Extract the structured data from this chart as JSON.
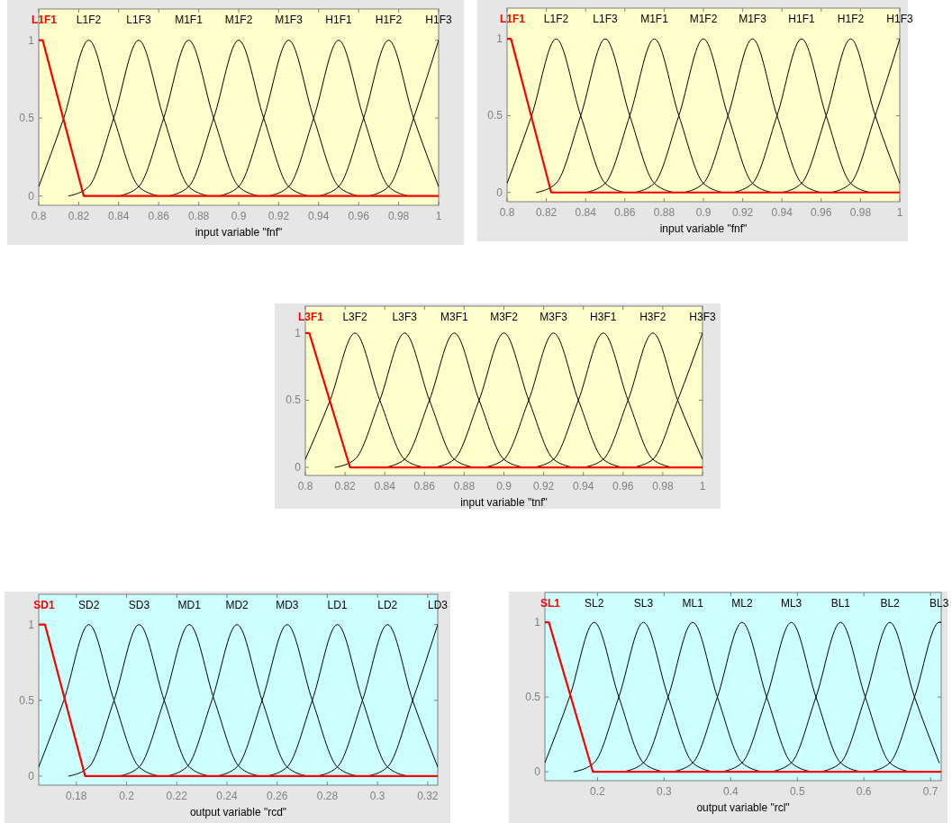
{
  "chart_data": [
    {
      "type": "line",
      "xlabel": "input variable \"fnf\"",
      "xlim": [
        0.8,
        1
      ],
      "xticks": [
        0.8,
        0.82,
        0.84,
        0.86,
        0.88,
        0.9,
        0.92,
        0.94,
        0.96,
        0.98,
        1
      ],
      "ylim": [
        -0.06,
        1.2
      ],
      "yticks": [
        0,
        0.5,
        1
      ],
      "series": [
        {
          "name": "L1F1",
          "color": "#ff0000",
          "x": [
            0.8,
            0.802,
            0.8225,
            1
          ],
          "values": [
            1,
            1,
            0,
            0
          ]
        },
        {
          "name": "L1F2",
          "color": "#000000",
          "x": [
            0.8,
            0.8125,
            0.825,
            0.8375,
            0.85,
            0.86
          ],
          "values": [
            0.06,
            0.5,
            1,
            0.5,
            0.06,
            0
          ]
        },
        {
          "name": "L1F3",
          "color": "#000000",
          "x": [
            0.815,
            0.825,
            0.8375,
            0.85,
            0.8625,
            0.875,
            0.885
          ],
          "values": [
            0,
            0.06,
            0.5,
            1,
            0.5,
            0.06,
            0
          ]
        },
        {
          "name": "M1F1",
          "color": "#000000",
          "x": [
            0.84,
            0.85,
            0.8625,
            0.875,
            0.8875,
            0.9,
            0.91
          ],
          "values": [
            0,
            0.06,
            0.5,
            1,
            0.5,
            0.06,
            0
          ]
        },
        {
          "name": "M1F2",
          "color": "#000000",
          "x": [
            0.865,
            0.875,
            0.8875,
            0.9,
            0.9125,
            0.925,
            0.935
          ],
          "values": [
            0,
            0.06,
            0.5,
            1,
            0.5,
            0.06,
            0
          ]
        },
        {
          "name": "M1F3",
          "color": "#000000",
          "x": [
            0.89,
            0.9,
            0.9125,
            0.925,
            0.9375,
            0.95,
            0.96
          ],
          "values": [
            0,
            0.06,
            0.5,
            1,
            0.5,
            0.06,
            0
          ]
        },
        {
          "name": "H1F1",
          "color": "#000000",
          "x": [
            0.915,
            0.925,
            0.9375,
            0.95,
            0.9625,
            0.975,
            0.985
          ],
          "values": [
            0,
            0.06,
            0.5,
            1,
            0.5,
            0.06,
            0
          ]
        },
        {
          "name": "H1F2",
          "color": "#000000",
          "x": [
            0.94,
            0.95,
            0.9625,
            0.975,
            0.9875,
            1
          ],
          "values": [
            0,
            0.06,
            0.5,
            1,
            0.5,
            0.06
          ]
        },
        {
          "name": "H1F3",
          "color": "#000000",
          "x": [
            0.965,
            0.975,
            0.9875,
            1
          ],
          "values": [
            0,
            0.06,
            0.5,
            1
          ]
        }
      ]
    },
    {
      "type": "line",
      "xlabel": "input variable \"fnf\"",
      "xlim": [
        0.8,
        1
      ],
      "xticks": [
        0.8,
        0.82,
        0.84,
        0.86,
        0.88,
        0.9,
        0.92,
        0.94,
        0.96,
        0.98,
        1
      ],
      "ylim": [
        -0.06,
        1.2
      ],
      "yticks": [
        0,
        0.5,
        1
      ],
      "series": [
        {
          "name": "L1F1",
          "color": "#ff0000",
          "x": [
            0.8,
            0.802,
            0.8225,
            1
          ],
          "values": [
            1,
            1,
            0,
            0
          ]
        },
        {
          "name": "L1F2",
          "color": "#000000",
          "x": [
            0.8,
            0.8125,
            0.825,
            0.8375,
            0.85,
            0.86
          ],
          "values": [
            0.06,
            0.5,
            1,
            0.5,
            0.06,
            0
          ]
        },
        {
          "name": "L1F3",
          "color": "#000000",
          "x": [
            0.815,
            0.825,
            0.8375,
            0.85,
            0.8625,
            0.875,
            0.885
          ],
          "values": [
            0,
            0.06,
            0.5,
            1,
            0.5,
            0.06,
            0
          ]
        },
        {
          "name": "M1F1",
          "color": "#000000",
          "x": [
            0.84,
            0.85,
            0.8625,
            0.875,
            0.8875,
            0.9,
            0.91
          ],
          "values": [
            0,
            0.06,
            0.5,
            1,
            0.5,
            0.06,
            0
          ]
        },
        {
          "name": "M1F2",
          "color": "#000000",
          "x": [
            0.865,
            0.875,
            0.8875,
            0.9,
            0.9125,
            0.925,
            0.935
          ],
          "values": [
            0,
            0.06,
            0.5,
            1,
            0.5,
            0.06,
            0
          ]
        },
        {
          "name": "M1F3",
          "color": "#000000",
          "x": [
            0.89,
            0.9,
            0.9125,
            0.925,
            0.9375,
            0.95,
            0.96
          ],
          "values": [
            0,
            0.06,
            0.5,
            1,
            0.5,
            0.06,
            0
          ]
        },
        {
          "name": "H1F1",
          "color": "#000000",
          "x": [
            0.915,
            0.925,
            0.9375,
            0.95,
            0.9625,
            0.975,
            0.985
          ],
          "values": [
            0,
            0.06,
            0.5,
            1,
            0.5,
            0.06,
            0
          ]
        },
        {
          "name": "H1F2",
          "color": "#000000",
          "x": [
            0.94,
            0.95,
            0.9625,
            0.975,
            0.9875,
            1
          ],
          "values": [
            0,
            0.06,
            0.5,
            1,
            0.5,
            0.06
          ]
        },
        {
          "name": "H1F3",
          "color": "#000000",
          "x": [
            0.965,
            0.975,
            0.9875,
            1
          ],
          "values": [
            0,
            0.06,
            0.5,
            1
          ]
        }
      ]
    },
    {
      "type": "line",
      "xlabel": "input variable \"tnf\"",
      "xlim": [
        0.8,
        1
      ],
      "xticks": [
        0.8,
        0.82,
        0.84,
        0.86,
        0.88,
        0.9,
        0.92,
        0.94,
        0.96,
        0.98,
        1
      ],
      "ylim": [
        -0.06,
        1.2
      ],
      "yticks": [
        0,
        0.5,
        1
      ],
      "series": [
        {
          "name": "L3F1",
          "color": "#ff0000",
          "x": [
            0.8,
            0.802,
            0.8225,
            1
          ],
          "values": [
            1,
            1,
            0,
            0
          ]
        },
        {
          "name": "L3F2",
          "color": "#000000",
          "x": [
            0.8,
            0.8125,
            0.825,
            0.8375,
            0.85,
            0.86
          ],
          "values": [
            0.06,
            0.5,
            1,
            0.5,
            0.06,
            0
          ]
        },
        {
          "name": "L3F3",
          "color": "#000000",
          "x": [
            0.815,
            0.825,
            0.8375,
            0.85,
            0.8625,
            0.875,
            0.885
          ],
          "values": [
            0,
            0.06,
            0.5,
            1,
            0.5,
            0.06,
            0
          ]
        },
        {
          "name": "M3F1",
          "color": "#000000",
          "x": [
            0.84,
            0.85,
            0.8625,
            0.875,
            0.8875,
            0.9,
            0.91
          ],
          "values": [
            0,
            0.06,
            0.5,
            1,
            0.5,
            0.06,
            0
          ]
        },
        {
          "name": "M3F2",
          "color": "#000000",
          "x": [
            0.865,
            0.875,
            0.8875,
            0.9,
            0.9125,
            0.925,
            0.935
          ],
          "values": [
            0,
            0.06,
            0.5,
            1,
            0.5,
            0.06,
            0
          ]
        },
        {
          "name": "M3F3",
          "color": "#000000",
          "x": [
            0.89,
            0.9,
            0.9125,
            0.925,
            0.9375,
            0.95,
            0.96
          ],
          "values": [
            0,
            0.06,
            0.5,
            1,
            0.5,
            0.06,
            0
          ]
        },
        {
          "name": "H3F1",
          "color": "#000000",
          "x": [
            0.915,
            0.925,
            0.9375,
            0.95,
            0.9625,
            0.975,
            0.985
          ],
          "values": [
            0,
            0.06,
            0.5,
            1,
            0.5,
            0.06,
            0
          ]
        },
        {
          "name": "H3F2",
          "color": "#000000",
          "x": [
            0.94,
            0.95,
            0.9625,
            0.975,
            0.9875,
            1
          ],
          "values": [
            0,
            0.06,
            0.5,
            1,
            0.5,
            0.06
          ]
        },
        {
          "name": "H3F3",
          "color": "#000000",
          "x": [
            0.965,
            0.975,
            0.9875,
            1
          ],
          "values": [
            0,
            0.06,
            0.5,
            1
          ]
        }
      ]
    },
    {
      "type": "line",
      "xlabel": "output variable \"rcd\"",
      "xlim": [
        0.165,
        0.324
      ],
      "xticks": [
        0.18,
        0.2,
        0.22,
        0.24,
        0.26,
        0.28,
        0.3,
        0.32
      ],
      "ylim": [
        -0.06,
        1.2
      ],
      "yticks": [
        0,
        0.5,
        1
      ],
      "series": [
        {
          "name": "SD1",
          "color": "#ff0000",
          "x": [
            0.165,
            0.1675,
            0.1835,
            0.324
          ],
          "values": [
            1,
            1,
            0,
            0
          ]
        },
        {
          "name": "SD2",
          "color": "#000000",
          "x": [
            0.165,
            0.175,
            0.185,
            0.195,
            0.205,
            0.213
          ],
          "values": [
            0.06,
            0.5,
            1,
            0.5,
            0.06,
            0
          ]
        },
        {
          "name": "SD3",
          "color": "#000000",
          "x": [
            0.177,
            0.185,
            0.195,
            0.205,
            0.215,
            0.225,
            0.233
          ],
          "values": [
            0,
            0.06,
            0.5,
            1,
            0.5,
            0.06,
            0
          ]
        },
        {
          "name": "MD1",
          "color": "#000000",
          "x": [
            0.197,
            0.205,
            0.215,
            0.225,
            0.235,
            0.245,
            0.253
          ],
          "values": [
            0,
            0.06,
            0.5,
            1,
            0.5,
            0.06,
            0
          ]
        },
        {
          "name": "MD2",
          "color": "#000000",
          "x": [
            0.216,
            0.224,
            0.234,
            0.244,
            0.254,
            0.264,
            0.272
          ],
          "values": [
            0,
            0.06,
            0.5,
            1,
            0.5,
            0.06,
            0
          ]
        },
        {
          "name": "MD3",
          "color": "#000000",
          "x": [
            0.236,
            0.244,
            0.254,
            0.264,
            0.274,
            0.284,
            0.292
          ],
          "values": [
            0,
            0.06,
            0.5,
            1,
            0.5,
            0.06,
            0
          ]
        },
        {
          "name": "LD1",
          "color": "#000000",
          "x": [
            0.256,
            0.264,
            0.274,
            0.284,
            0.294,
            0.304,
            0.312
          ],
          "values": [
            0,
            0.06,
            0.5,
            1,
            0.5,
            0.06,
            0
          ]
        },
        {
          "name": "LD2",
          "color": "#000000",
          "x": [
            0.276,
            0.284,
            0.294,
            0.304,
            0.314,
            0.324
          ],
          "values": [
            0,
            0.06,
            0.5,
            1,
            0.5,
            0.06
          ]
        },
        {
          "name": "LD3",
          "color": "#000000",
          "x": [
            0.296,
            0.304,
            0.314,
            0.324
          ],
          "values": [
            0,
            0.06,
            0.5,
            1
          ]
        }
      ]
    },
    {
      "type": "line",
      "xlabel": "output variable \"rcl\"",
      "xlim": [
        0.121,
        0.716
      ],
      "xticks": [
        0.2,
        0.3,
        0.4,
        0.5,
        0.6,
        0.7
      ],
      "ylim": [
        -0.06,
        1.2
      ],
      "yticks": [
        0,
        0.5,
        1
      ],
      "series": [
        {
          "name": "SL1",
          "color": "#ff0000",
          "x": [
            0.121,
            0.127,
            0.193,
            0.716
          ],
          "values": [
            1,
            1,
            0,
            0
          ]
        },
        {
          "name": "SL2",
          "color": "#000000",
          "x": [
            0.121,
            0.158,
            0.195,
            0.232,
            0.269,
            0.299
          ],
          "values": [
            0.06,
            0.5,
            1,
            0.5,
            0.06,
            0
          ]
        },
        {
          "name": "SL3",
          "color": "#000000",
          "x": [
            0.165,
            0.195,
            0.232,
            0.269,
            0.306,
            0.343,
            0.373
          ],
          "values": [
            0,
            0.06,
            0.5,
            1,
            0.5,
            0.06,
            0
          ]
        },
        {
          "name": "ML1",
          "color": "#000000",
          "x": [
            0.239,
            0.269,
            0.306,
            0.343,
            0.38,
            0.417,
            0.447
          ],
          "values": [
            0,
            0.06,
            0.5,
            1,
            0.5,
            0.06,
            0
          ]
        },
        {
          "name": "ML2",
          "color": "#000000",
          "x": [
            0.313,
            0.343,
            0.38,
            0.417,
            0.454,
            0.491,
            0.521
          ],
          "values": [
            0,
            0.06,
            0.5,
            1,
            0.5,
            0.06,
            0
          ]
        },
        {
          "name": "ML3",
          "color": "#000000",
          "x": [
            0.387,
            0.417,
            0.454,
            0.491,
            0.528,
            0.565,
            0.595
          ],
          "values": [
            0,
            0.06,
            0.5,
            1,
            0.5,
            0.06,
            0
          ]
        },
        {
          "name": "BL1",
          "color": "#000000",
          "x": [
            0.461,
            0.491,
            0.528,
            0.565,
            0.602,
            0.639,
            0.669
          ],
          "values": [
            0,
            0.06,
            0.5,
            1,
            0.5,
            0.06,
            0
          ]
        },
        {
          "name": "BL2",
          "color": "#000000",
          "x": [
            0.535,
            0.565,
            0.602,
            0.639,
            0.676,
            0.713
          ],
          "values": [
            0,
            0.06,
            0.5,
            1,
            0.5,
            0.06
          ]
        },
        {
          "name": "BL3",
          "color": "#000000",
          "x": [
            0.609,
            0.639,
            0.676,
            0.713,
            0.716
          ],
          "values": [
            0,
            0.06,
            0.5,
            1,
            1
          ]
        }
      ]
    }
  ]
}
